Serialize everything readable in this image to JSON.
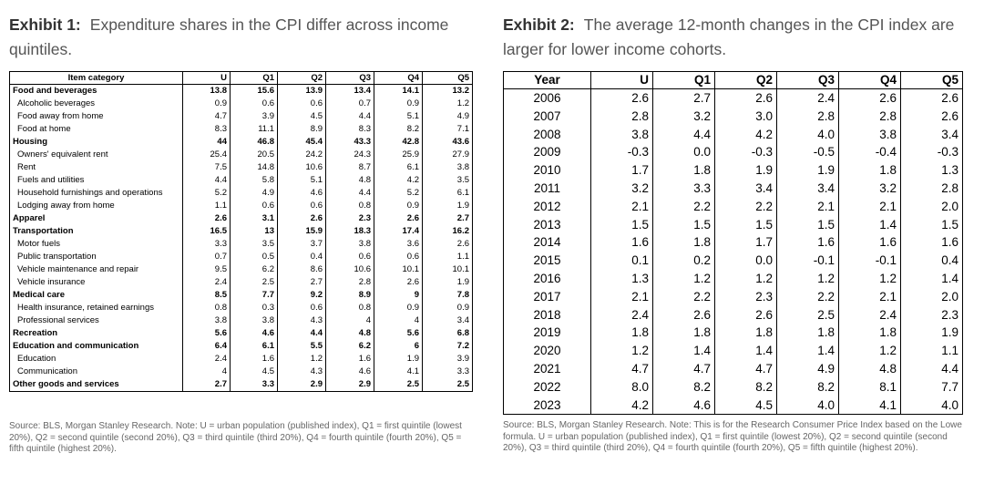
{
  "exhibit1": {
    "label": "Exhibit 1:",
    "title": "Expenditure shares in the CPI differ across income quintiles.",
    "headers": [
      "Item category",
      "U",
      "Q1",
      "Q2",
      "Q3",
      "Q4",
      "Q5"
    ],
    "rows": [
      {
        "bold": true,
        "cells": [
          "Food and beverages",
          "13.8",
          "15.6",
          "13.9",
          "13.4",
          "14.1",
          "13.2"
        ]
      },
      {
        "bold": false,
        "cells": [
          "Alcoholic beverages",
          "0.9",
          "0.6",
          "0.6",
          "0.7",
          "0.9",
          "1.2"
        ]
      },
      {
        "bold": false,
        "cells": [
          "Food away from home",
          "4.7",
          "3.9",
          "4.5",
          "4.4",
          "5.1",
          "4.9"
        ]
      },
      {
        "bold": false,
        "cells": [
          "Food at home",
          "8.3",
          "11.1",
          "8.9",
          "8.3",
          "8.2",
          "7.1"
        ]
      },
      {
        "bold": true,
        "cells": [
          "Housing",
          "44",
          "46.8",
          "45.4",
          "43.3",
          "42.8",
          "43.6"
        ]
      },
      {
        "bold": false,
        "cells": [
          "Owners' equivalent rent",
          "25.4",
          "20.5",
          "24.2",
          "24.3",
          "25.9",
          "27.9"
        ]
      },
      {
        "bold": false,
        "cells": [
          "Rent",
          "7.5",
          "14.8",
          "10.6",
          "8.7",
          "6.1",
          "3.8"
        ]
      },
      {
        "bold": false,
        "cells": [
          "Fuels and utilities",
          "4.4",
          "5.8",
          "5.1",
          "4.8",
          "4.2",
          "3.5"
        ]
      },
      {
        "bold": false,
        "cells": [
          "Household furnishings and operations",
          "5.2",
          "4.9",
          "4.6",
          "4.4",
          "5.2",
          "6.1"
        ]
      },
      {
        "bold": false,
        "cells": [
          "Lodging away from home",
          "1.1",
          "0.6",
          "0.6",
          "0.8",
          "0.9",
          "1.9"
        ]
      },
      {
        "bold": true,
        "cells": [
          "Apparel",
          "2.6",
          "3.1",
          "2.6",
          "2.3",
          "2.6",
          "2.7"
        ]
      },
      {
        "bold": true,
        "cells": [
          "Transportation",
          "16.5",
          "13",
          "15.9",
          "18.3",
          "17.4",
          "16.2"
        ]
      },
      {
        "bold": false,
        "cells": [
          "Motor fuels",
          "3.3",
          "3.5",
          "3.7",
          "3.8",
          "3.6",
          "2.6"
        ]
      },
      {
        "bold": false,
        "cells": [
          "Public transportation",
          "0.7",
          "0.5",
          "0.4",
          "0.6",
          "0.6",
          "1.1"
        ]
      },
      {
        "bold": false,
        "cells": [
          "Vehicle maintenance and repair",
          "9.5",
          "6.2",
          "8.6",
          "10.6",
          "10.1",
          "10.1"
        ]
      },
      {
        "bold": false,
        "cells": [
          "Vehicle insurance",
          "2.4",
          "2.5",
          "2.7",
          "2.8",
          "2.6",
          "1.9"
        ]
      },
      {
        "bold": true,
        "cells": [
          "Medical care",
          "8.5",
          "7.7",
          "9.2",
          "8.9",
          "9",
          "7.8"
        ]
      },
      {
        "bold": false,
        "cells": [
          "Health insurance, retained earnings",
          "0.8",
          "0.3",
          "0.6",
          "0.8",
          "0.9",
          "0.9"
        ]
      },
      {
        "bold": false,
        "cells": [
          "Professional services",
          "3.8",
          "3.8",
          "4.3",
          "4",
          "4",
          "3.4"
        ]
      },
      {
        "bold": true,
        "cells": [
          "Recreation",
          "5.6",
          "4.6",
          "4.4",
          "4.8",
          "5.6",
          "6.8"
        ]
      },
      {
        "bold": true,
        "cells": [
          "Education and communication",
          "6.4",
          "6.1",
          "5.5",
          "6.2",
          "6",
          "7.2"
        ]
      },
      {
        "bold": false,
        "cells": [
          "Education",
          "2.4",
          "1.6",
          "1.2",
          "1.6",
          "1.9",
          "3.9"
        ]
      },
      {
        "bold": false,
        "cells": [
          "Communication",
          "4",
          "4.5",
          "4.3",
          "4.6",
          "4.1",
          "3.3"
        ]
      },
      {
        "bold": true,
        "cells": [
          "Other goods and services",
          "2.7",
          "3.3",
          "2.9",
          "2.9",
          "2.5",
          "2.5"
        ]
      }
    ],
    "note": "Source: BLS, Morgan Stanley Research. Note: U = urban population (published index), Q1 = first quintile (lowest 20%), Q2 = second quintile (second 20%), Q3 = third quintile (third 20%), Q4 = fourth quintile (fourth 20%), Q5 = fifth quintile (highest 20%)."
  },
  "exhibit2": {
    "label": "Exhibit 2:",
    "title": "The average 12-month changes in the CPI index are larger for lower income cohorts.",
    "headers": [
      "Year",
      "U",
      "Q1",
      "Q2",
      "Q3",
      "Q4",
      "Q5"
    ],
    "rows": [
      [
        "2006",
        "2.6",
        "2.7",
        "2.6",
        "2.4",
        "2.6",
        "2.6"
      ],
      [
        "2007",
        "2.8",
        "3.2",
        "3.0",
        "2.8",
        "2.8",
        "2.6"
      ],
      [
        "2008",
        "3.8",
        "4.4",
        "4.2",
        "4.0",
        "3.8",
        "3.4"
      ],
      [
        "2009",
        "-0.3",
        "0.0",
        "-0.3",
        "-0.5",
        "-0.4",
        "-0.3"
      ],
      [
        "2010",
        "1.7",
        "1.8",
        "1.9",
        "1.9",
        "1.8",
        "1.3"
      ],
      [
        "2011",
        "3.2",
        "3.3",
        "3.4",
        "3.4",
        "3.2",
        "2.8"
      ],
      [
        "2012",
        "2.1",
        "2.2",
        "2.2",
        "2.1",
        "2.1",
        "2.0"
      ],
      [
        "2013",
        "1.5",
        "1.5",
        "1.5",
        "1.5",
        "1.4",
        "1.5"
      ],
      [
        "2014",
        "1.6",
        "1.8",
        "1.7",
        "1.6",
        "1.6",
        "1.6"
      ],
      [
        "2015",
        "0.1",
        "0.2",
        "0.0",
        "-0.1",
        "-0.1",
        "0.4"
      ],
      [
        "2016",
        "1.3",
        "1.2",
        "1.2",
        "1.2",
        "1.2",
        "1.4"
      ],
      [
        "2017",
        "2.1",
        "2.2",
        "2.3",
        "2.2",
        "2.1",
        "2.0"
      ],
      [
        "2018",
        "2.4",
        "2.6",
        "2.6",
        "2.5",
        "2.4",
        "2.3"
      ],
      [
        "2019",
        "1.8",
        "1.8",
        "1.8",
        "1.8",
        "1.8",
        "1.9"
      ],
      [
        "2020",
        "1.2",
        "1.4",
        "1.4",
        "1.4",
        "1.2",
        "1.1"
      ],
      [
        "2021",
        "4.7",
        "4.7",
        "4.7",
        "4.9",
        "4.8",
        "4.4"
      ],
      [
        "2022",
        "8.0",
        "8.2",
        "8.2",
        "8.2",
        "8.1",
        "7.7"
      ],
      [
        "2023",
        "4.2",
        "4.6",
        "4.5",
        "4.0",
        "4.1",
        "4.0"
      ]
    ],
    "note": "Source: BLS, Morgan Stanley Research. Note: This is for the Research Consumer Price Index based on the Lowe formula. U = urban population (published index), Q1 = first quintile (lowest 20%), Q2 = second quintile (second 20%), Q3 = third quintile (third 20%), Q4 = fourth quintile (fourth 20%), Q5 = fifth quintile (highest 20%)."
  }
}
